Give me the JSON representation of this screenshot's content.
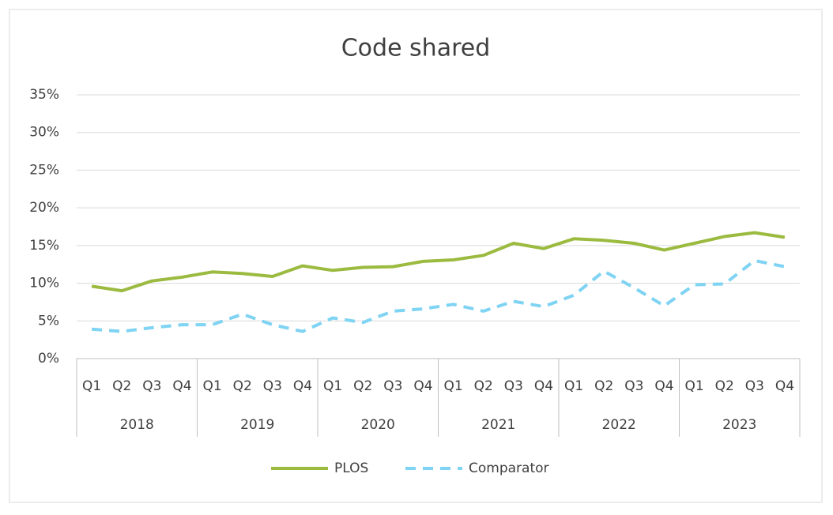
{
  "chart_data": {
    "type": "line",
    "title": "Code shared",
    "categories": [
      "Q1",
      "Q2",
      "Q3",
      "Q4",
      "Q1",
      "Q2",
      "Q3",
      "Q4",
      "Q1",
      "Q2",
      "Q3",
      "Q4",
      "Q1",
      "Q2",
      "Q3",
      "Q4",
      "Q1",
      "Q2",
      "Q3",
      "Q4",
      "Q1",
      "Q2",
      "Q3",
      "Q4"
    ],
    "groups": [
      "2018",
      "2019",
      "2020",
      "2021",
      "2022",
      "2023"
    ],
    "series": [
      {
        "name": "PLOS",
        "color": "#9bbb40",
        "dash": false,
        "values": [
          9.6,
          9.0,
          10.3,
          10.8,
          11.5,
          11.3,
          10.9,
          12.3,
          11.7,
          12.1,
          12.2,
          12.9,
          13.1,
          13.7,
          15.3,
          14.6,
          15.9,
          15.7,
          15.3,
          14.4,
          15.3,
          16.2,
          16.7,
          16.1
        ]
      },
      {
        "name": "Comparator",
        "color": "#7fd3f3",
        "dash": true,
        "values": [
          3.9,
          3.6,
          4.1,
          4.5,
          4.5,
          5.9,
          4.5,
          3.6,
          5.4,
          4.8,
          6.3,
          6.6,
          7.2,
          6.3,
          7.6,
          6.9,
          8.4,
          11.6,
          9.4,
          7.0,
          9.8,
          9.9,
          13.0,
          12.2
        ]
      }
    ],
    "ylim": [
      0,
      35
    ],
    "yticks": [
      {
        "value": 0,
        "label": "0%"
      },
      {
        "value": 5,
        "label": "5%"
      },
      {
        "value": 10,
        "label": "10%"
      },
      {
        "value": 15,
        "label": "15%"
      },
      {
        "value": 20,
        "label": "20%"
      },
      {
        "value": 25,
        "label": "25%"
      },
      {
        "value": 30,
        "label": "30%"
      },
      {
        "value": 35,
        "label": "35%"
      }
    ],
    "grid": true,
    "legend": "bottom"
  }
}
